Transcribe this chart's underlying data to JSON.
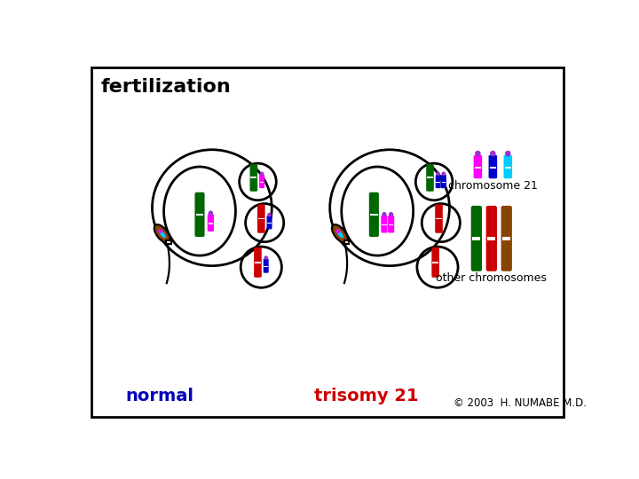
{
  "bg_color": "#ffffff",
  "box_color": "#000000",
  "title": "fertilization",
  "title_color": "#000000",
  "title_fontsize": 16,
  "label_normal": "normal",
  "label_normal_color": "#0000bb",
  "label_trisomy": "trisomy 21",
  "label_trisomy_color": "#cc0000",
  "label_other": "other chromosomes",
  "label_chr21": "chromosome 21",
  "copyright": "© 2003  H. NUMABE M.D.",
  "chr21_colors": [
    "#ff00ff",
    "#0000cc",
    "#00ccff"
  ],
  "other_chr_colors": [
    "#006600",
    "#cc0000",
    "#884400"
  ],
  "red_chr": "#cc0000",
  "green_chr": "#006600",
  "magenta_chr": "#ff00ff",
  "blue_chr": "#0000cc",
  "brown_chr": "#884400",
  "cyan_chr": "#00ccff",
  "purple_dot": "#9933cc"
}
